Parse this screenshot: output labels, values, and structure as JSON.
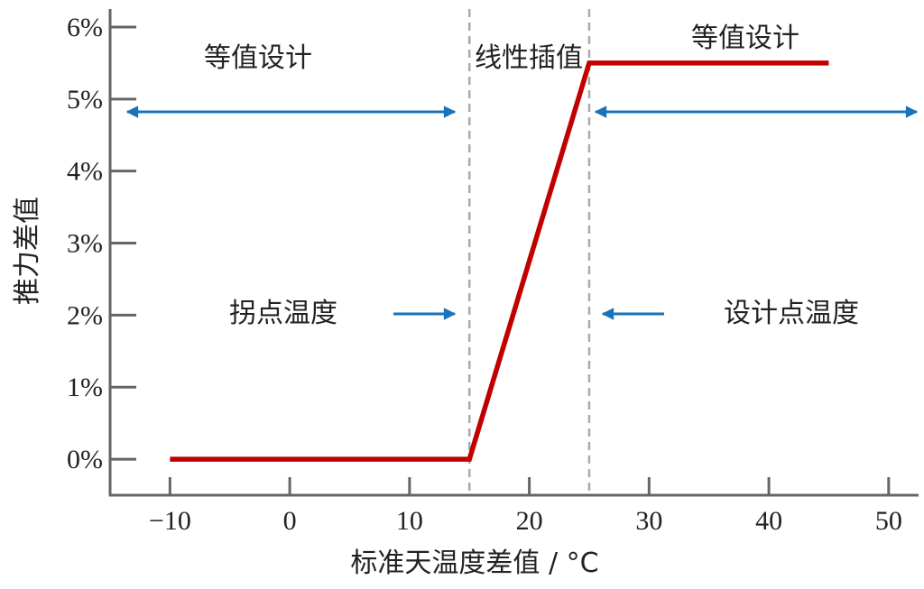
{
  "chart_data": {
    "type": "line",
    "xlabel": "标准天温度差值 / °C",
    "ylabel": "推力差值",
    "xlim": [
      -15,
      52.5
    ],
    "ylim": [
      -0.5,
      6.25
    ],
    "x_ticks": [
      -10,
      0,
      10,
      20,
      30,
      40,
      50
    ],
    "x_tick_labels": [
      "−10",
      "0",
      "10",
      "20",
      "30",
      "40",
      "50"
    ],
    "y_ticks": [
      0,
      1,
      2,
      3,
      4,
      5,
      6
    ],
    "y_tick_labels": [
      "0%",
      "1%",
      "2%",
      "3%",
      "4%",
      "5%",
      "6%"
    ],
    "grid": false,
    "series": [
      {
        "x": [
          -10,
          15,
          25,
          45
        ],
        "y": [
          0,
          0,
          5.5,
          5.5
        ],
        "color": "#c00000"
      }
    ],
    "vlines": [
      15,
      25
    ],
    "annotations": {
      "left_region": "等值设计",
      "middle_region": "线性插值",
      "right_region": "等值设计",
      "kink_temp": "拐点温度",
      "design_temp": "设计点温度"
    },
    "arrow_color": "#1a72b8",
    "axis_color": "#666666"
  }
}
